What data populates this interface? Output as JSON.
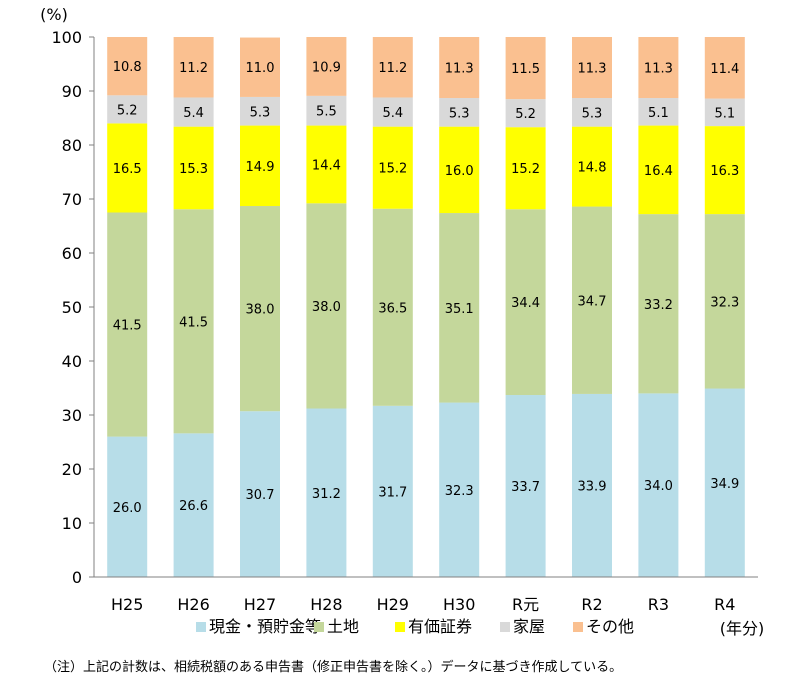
{
  "chart_data": {
    "type": "bar",
    "stacked": true,
    "y_unit_label": "(%)",
    "x_unit_label": "(年分)",
    "ylim": [
      0,
      100
    ],
    "yticks": [
      0,
      10,
      20,
      30,
      40,
      50,
      60,
      70,
      80,
      90,
      100
    ],
    "categories": [
      "H25",
      "H26",
      "H27",
      "H28",
      "H29",
      "H30",
      "R元",
      "R2",
      "R3",
      "R4"
    ],
    "series": [
      {
        "name": "現金・預貯金等",
        "color": "#b7dde8",
        "values": [
          26.0,
          26.6,
          30.7,
          31.2,
          31.7,
          32.3,
          33.7,
          33.9,
          34.0,
          34.9
        ]
      },
      {
        "name": "土地",
        "color": "#c4d79b",
        "values": [
          41.5,
          41.5,
          38.0,
          38.0,
          36.5,
          35.1,
          34.4,
          34.7,
          33.2,
          32.3
        ]
      },
      {
        "name": "有価証券",
        "color": "#ffff00",
        "values": [
          16.5,
          15.3,
          14.9,
          14.4,
          15.2,
          16.0,
          15.2,
          14.8,
          16.4,
          16.3
        ]
      },
      {
        "name": "家屋",
        "color": "#d9d9d9",
        "values": [
          5.2,
          5.4,
          5.3,
          5.5,
          5.4,
          5.3,
          5.2,
          5.3,
          5.1,
          5.1
        ]
      },
      {
        "name": "その他",
        "color": "#fac090",
        "values": [
          10.8,
          11.2,
          11.0,
          10.9,
          11.2,
          11.3,
          11.5,
          11.3,
          11.3,
          11.4
        ]
      }
    ],
    "legend_position": "bottom",
    "grid": false
  },
  "note": "（注）上記の計数は、相続税額のある申告書（修正申告書を除く。）データに基づき作成している。"
}
